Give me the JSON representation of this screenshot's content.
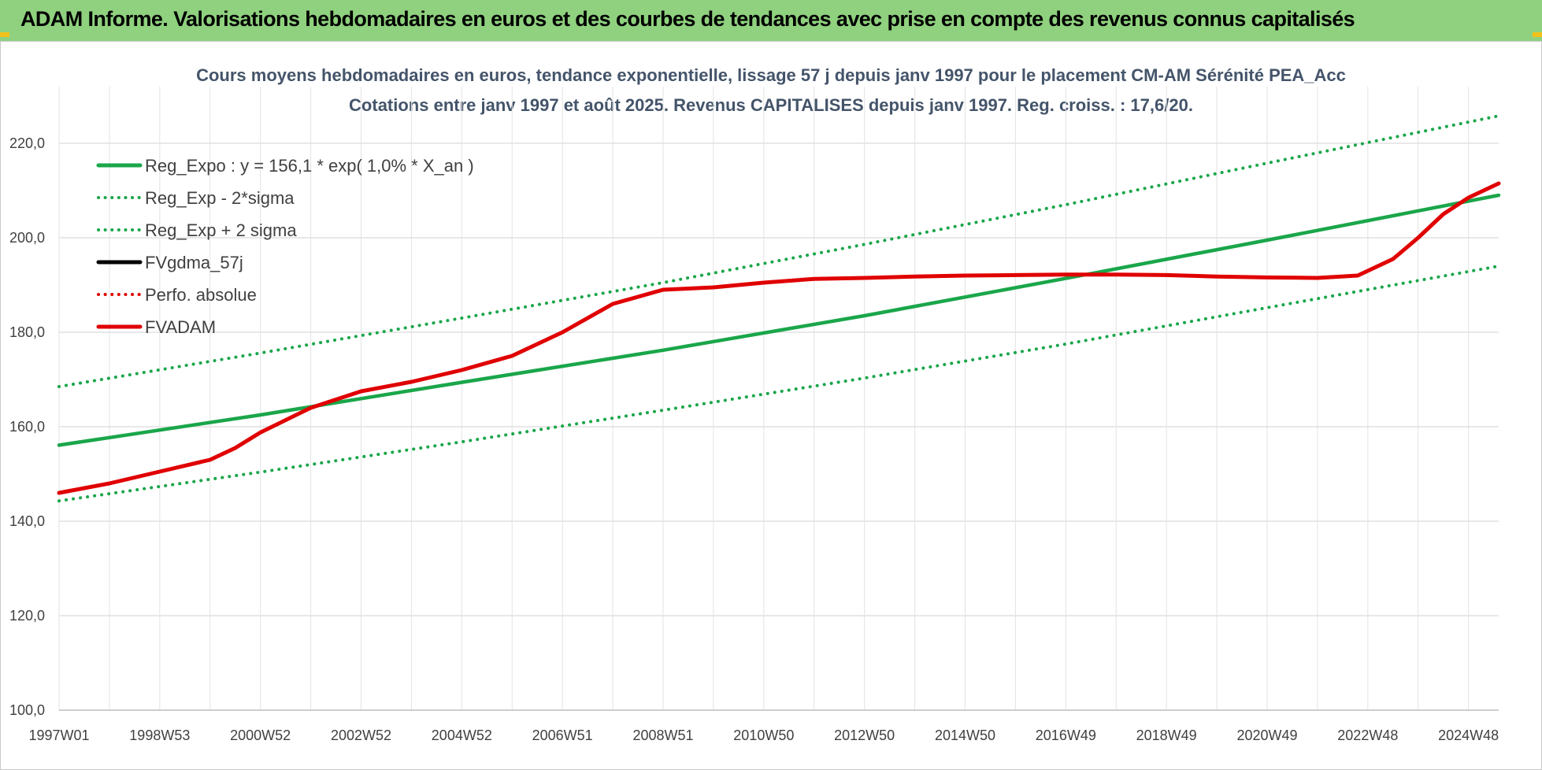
{
  "banner": {
    "title": "ADAM Informe. Valorisations hebdomadaires en euros et des courbes de tendances avec prise en compte des revenus connus capitalisés",
    "color": "#8fd17e"
  },
  "chart_data": {
    "type": "line",
    "title_line1": "Cours moyens hebdomadaires en euros, tendance exponentielle, lissage 57 j depuis janv 1997 pour le placement CM-AM Sérénité PEA_Acc",
    "title_line2": "Cotations entre janv 1997 et août 2025. Revenus CAPITALISES depuis janv 1997. Reg. croiss. : 17,6/20.",
    "xlabel": "",
    "ylabel": "",
    "x_range": [
      1997.0,
      2025.6
    ],
    "ylim": [
      100,
      230
    ],
    "y_ticks": [
      "100,0",
      "120,0",
      "140,0",
      "160,0",
      "180,0",
      "200,0",
      "220,0"
    ],
    "y_tick_values": [
      100,
      120,
      140,
      160,
      180,
      200,
      220
    ],
    "x_ticks": [
      "1997W01",
      "1998W53",
      "2000W52",
      "2002W52",
      "2004W52",
      "2006W51",
      "2008W51",
      "2010W50",
      "2012W50",
      "2014W50",
      "2016W49",
      "2018W49",
      "2020W49",
      "2022W48",
      "2024W48"
    ],
    "x_tick_values": [
      1997.0,
      1999.0,
      2001.0,
      2003.0,
      2005.0,
      2007.0,
      2009.0,
      2011.0,
      2013.0,
      2015.0,
      2017.0,
      2019.0,
      2021.0,
      2023.0,
      2025.0
    ],
    "grid": true,
    "legend_position": "top-left",
    "series": [
      {
        "name": "Reg_Expo : y = 156,1 * exp( 1,0% *  X_an )",
        "color": "#1aa64a",
        "style": "solid",
        "x": [
          1997.0,
          2001.0,
          2005.0,
          2009.0,
          2013.0,
          2017.0,
          2021.0,
          2025.6
        ],
        "values": [
          156.1,
          162.5,
          169.4,
          176.2,
          183.5,
          191.4,
          199.5,
          209.0
        ]
      },
      {
        "name": "Reg_Exp - 2*sigma",
        "color": "#1aa64a",
        "style": "dotted",
        "x": [
          1997.0,
          2001.0,
          2005.0,
          2009.0,
          2013.0,
          2017.0,
          2021.0,
          2025.6
        ],
        "values": [
          144.3,
          150.4,
          156.8,
          163.5,
          170.3,
          177.5,
          185.2,
          194.0
        ]
      },
      {
        "name": "Reg_Exp + 2 sigma",
        "color": "#1aa64a",
        "style": "dotted",
        "x": [
          1997.0,
          2001.0,
          2005.0,
          2009.0,
          2013.0,
          2017.0,
          2021.0,
          2025.6
        ],
        "values": [
          168.5,
          175.6,
          183.0,
          190.5,
          198.6,
          207.0,
          215.8,
          225.8
        ]
      },
      {
        "name": "FVgdma_57j",
        "color": "#000000",
        "style": "solid",
        "x": [],
        "values": []
      },
      {
        "name": "Perfo. absolue",
        "color": "#e00000",
        "style": "dotted",
        "x": [],
        "values": []
      },
      {
        "name": "FVADAM",
        "color": "#e00000",
        "style": "solid",
        "x": [
          1997.0,
          1998.0,
          1999.0,
          2000.0,
          2000.5,
          2001.0,
          2002.0,
          2003.0,
          2004.0,
          2005.0,
          2006.0,
          2007.0,
          2008.0,
          2009.0,
          2010.0,
          2011.0,
          2012.0,
          2013.0,
          2014.0,
          2015.0,
          2016.0,
          2017.0,
          2018.0,
          2019.0,
          2020.0,
          2021.0,
          2022.0,
          2022.8,
          2023.5,
          2024.0,
          2024.5,
          2025.0,
          2025.6
        ],
        "values": [
          146.0,
          148.0,
          150.5,
          153.0,
          155.5,
          158.8,
          164.0,
          167.5,
          169.5,
          172.0,
          175.0,
          180.0,
          186.0,
          189.0,
          189.5,
          190.5,
          191.3,
          191.5,
          191.8,
          192.0,
          192.1,
          192.2,
          192.2,
          192.1,
          191.8,
          191.6,
          191.5,
          192.0,
          195.5,
          200.0,
          205.0,
          208.5,
          211.5
        ]
      }
    ]
  }
}
